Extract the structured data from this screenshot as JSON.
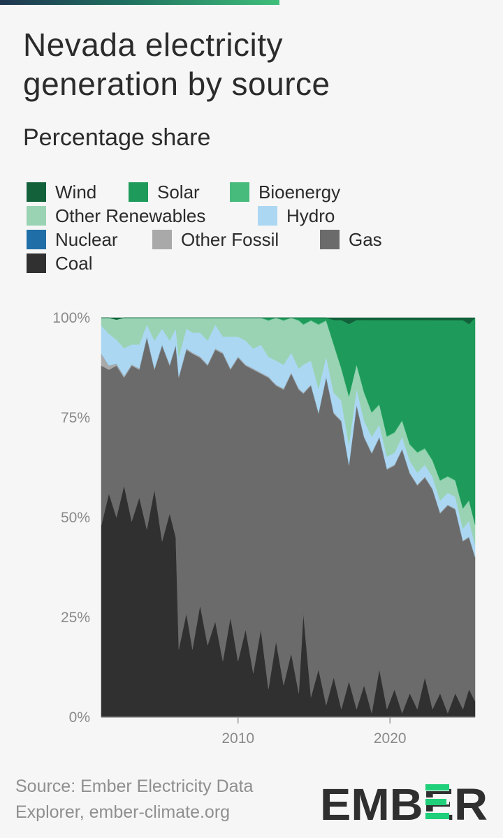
{
  "title_line1": "Nevada electricity",
  "title_line2": "generation by source",
  "subtitle": "Percentage share",
  "source_line1": "Source: Ember Electricity Data",
  "source_line2": "Explorer, ember-climate.org",
  "logo_text": "EMBER",
  "chart_data": {
    "type": "area",
    "stacked": true,
    "unit": "%",
    "title": "Nevada electricity generation by source",
    "subtitle": "Percentage share",
    "x_range": [
      2001.0,
      2025.6
    ],
    "x_ticks": [
      2010,
      2020
    ],
    "x_tick_labels": [
      "2010",
      "2020"
    ],
    "ylim": [
      0,
      100
    ],
    "y_ticks": [
      0,
      25,
      50,
      75,
      100
    ],
    "y_tick_labels": [
      "0%",
      "25%",
      "50%",
      "75%",
      "100%"
    ],
    "legend_position": "top",
    "series_order_bottom_to_top": [
      "Coal",
      "Gas",
      "Other Fossil",
      "Nuclear",
      "Hydro",
      "Other Renewables",
      "Bioenergy",
      "Solar",
      "Wind"
    ],
    "legend": [
      {
        "name": "Wind",
        "color": "#12613b"
      },
      {
        "name": "Solar",
        "color": "#1e9a5a"
      },
      {
        "name": "Bioenergy",
        "color": "#46bb7c"
      },
      {
        "name": "Other Renewables",
        "color": "#99d3b3"
      },
      {
        "name": "Hydro",
        "color": "#acd7f2"
      },
      {
        "name": "Nuclear",
        "color": "#1f6ea8"
      },
      {
        "name": "Other Fossil",
        "color": "#a9a9a9"
      },
      {
        "name": "Gas",
        "color": "#6b6b6b"
      },
      {
        "name": "Coal",
        "color": "#303030"
      }
    ],
    "series": [
      {
        "name": "Coal",
        "points": [
          [
            2001.0,
            48
          ],
          [
            2001.5,
            56
          ],
          [
            2002.0,
            50
          ],
          [
            2002.5,
            58
          ],
          [
            2003.0,
            49
          ],
          [
            2003.5,
            55
          ],
          [
            2004.0,
            47
          ],
          [
            2004.5,
            57
          ],
          [
            2005.0,
            44
          ],
          [
            2005.5,
            51
          ],
          [
            2005.9,
            45
          ],
          [
            2006.1,
            17
          ],
          [
            2006.6,
            26
          ],
          [
            2007.0,
            17
          ],
          [
            2007.5,
            28
          ],
          [
            2008.0,
            18
          ],
          [
            2008.5,
            24
          ],
          [
            2009.0,
            14
          ],
          [
            2009.5,
            25
          ],
          [
            2010.0,
            14
          ],
          [
            2010.5,
            22
          ],
          [
            2011.0,
            11
          ],
          [
            2011.5,
            22
          ],
          [
            2012.0,
            7
          ],
          [
            2012.5,
            19
          ],
          [
            2013.0,
            8
          ],
          [
            2013.5,
            16
          ],
          [
            2014.0,
            6
          ],
          [
            2014.3,
            26
          ],
          [
            2014.8,
            5
          ],
          [
            2015.3,
            12
          ],
          [
            2015.8,
            3
          ],
          [
            2016.3,
            10
          ],
          [
            2016.8,
            2
          ],
          [
            2017.3,
            9
          ],
          [
            2017.8,
            2
          ],
          [
            2018.3,
            8
          ],
          [
            2018.8,
            1
          ],
          [
            2019.3,
            12
          ],
          [
            2019.8,
            2
          ],
          [
            2020.3,
            7
          ],
          [
            2020.8,
            1
          ],
          [
            2021.3,
            6
          ],
          [
            2021.8,
            2
          ],
          [
            2022.3,
            10
          ],
          [
            2022.8,
            2
          ],
          [
            2023.3,
            6
          ],
          [
            2023.8,
            1
          ],
          [
            2024.3,
            6
          ],
          [
            2024.8,
            2
          ],
          [
            2025.2,
            7
          ],
          [
            2025.6,
            4
          ]
        ]
      },
      {
        "name": "Gas",
        "points": [
          [
            2001.0,
            40
          ],
          [
            2001.5,
            31
          ],
          [
            2002.0,
            38
          ],
          [
            2002.5,
            27
          ],
          [
            2003.0,
            39
          ],
          [
            2003.5,
            32
          ],
          [
            2004.0,
            48
          ],
          [
            2004.5,
            30
          ],
          [
            2005.0,
            49
          ],
          [
            2005.5,
            37
          ],
          [
            2005.9,
            48
          ],
          [
            2006.1,
            68
          ],
          [
            2006.6,
            66
          ],
          [
            2007.0,
            74
          ],
          [
            2007.5,
            62
          ],
          [
            2008.0,
            70
          ],
          [
            2008.5,
            68
          ],
          [
            2009.0,
            77
          ],
          [
            2009.5,
            62
          ],
          [
            2010.0,
            76
          ],
          [
            2010.5,
            66
          ],
          [
            2011.0,
            76
          ],
          [
            2011.5,
            64
          ],
          [
            2012.0,
            78
          ],
          [
            2012.5,
            64
          ],
          [
            2013.0,
            74
          ],
          [
            2013.5,
            70
          ],
          [
            2014.0,
            76
          ],
          [
            2014.3,
            55
          ],
          [
            2014.8,
            78
          ],
          [
            2015.3,
            64
          ],
          [
            2015.8,
            82
          ],
          [
            2016.3,
            66
          ],
          [
            2016.8,
            72
          ],
          [
            2017.3,
            54
          ],
          [
            2017.8,
            76
          ],
          [
            2018.3,
            62
          ],
          [
            2018.8,
            65
          ],
          [
            2019.3,
            58
          ],
          [
            2019.8,
            60
          ],
          [
            2020.3,
            56
          ],
          [
            2020.8,
            66
          ],
          [
            2021.3,
            55
          ],
          [
            2021.8,
            56
          ],
          [
            2022.3,
            50
          ],
          [
            2022.8,
            55
          ],
          [
            2023.3,
            45
          ],
          [
            2023.8,
            52
          ],
          [
            2024.3,
            46
          ],
          [
            2024.8,
            42
          ],
          [
            2025.2,
            38
          ],
          [
            2025.6,
            36
          ]
        ]
      },
      {
        "name": "Other Fossil",
        "points": [
          [
            2001.0,
            3
          ],
          [
            2001.5,
            1
          ],
          [
            2002.0,
            0.5
          ],
          [
            2003.0,
            0.3
          ],
          [
            2025.6,
            0.2
          ]
        ]
      },
      {
        "name": "Nuclear",
        "points": [
          [
            2001.0,
            0
          ],
          [
            2025.6,
            0
          ]
        ]
      },
      {
        "name": "Hydro",
        "points": [
          [
            2001.0,
            7
          ],
          [
            2001.5,
            8
          ],
          [
            2002.0,
            6
          ],
          [
            2002.5,
            7
          ],
          [
            2003.0,
            5
          ],
          [
            2003.5,
            6
          ],
          [
            2004.0,
            3
          ],
          [
            2004.5,
            7
          ],
          [
            2005.0,
            4
          ],
          [
            2005.5,
            6
          ],
          [
            2005.9,
            4
          ],
          [
            2006.1,
            5
          ],
          [
            2006.6,
            5
          ],
          [
            2007.0,
            5
          ],
          [
            2007.5,
            6
          ],
          [
            2008.0,
            6
          ],
          [
            2008.5,
            6
          ],
          [
            2009.0,
            4
          ],
          [
            2009.5,
            8
          ],
          [
            2010.0,
            5
          ],
          [
            2010.5,
            6
          ],
          [
            2011.0,
            5
          ],
          [
            2011.5,
            7
          ],
          [
            2012.0,
            5
          ],
          [
            2012.5,
            6
          ],
          [
            2013.0,
            6
          ],
          [
            2013.5,
            5
          ],
          [
            2014.0,
            5
          ],
          [
            2014.3,
            7
          ],
          [
            2014.8,
            6
          ],
          [
            2015.3,
            6
          ],
          [
            2015.8,
            5
          ],
          [
            2016.3,
            5
          ],
          [
            2016.8,
            5
          ],
          [
            2017.3,
            5
          ],
          [
            2017.8,
            4
          ],
          [
            2018.3,
            4
          ],
          [
            2018.8,
            4
          ],
          [
            2019.3,
            3
          ],
          [
            2019.8,
            3
          ],
          [
            2020.3,
            3
          ],
          [
            2020.8,
            3
          ],
          [
            2021.3,
            3
          ],
          [
            2021.8,
            3
          ],
          [
            2022.3,
            3
          ],
          [
            2022.8,
            3
          ],
          [
            2023.3,
            3
          ],
          [
            2023.8,
            3
          ],
          [
            2024.3,
            3
          ],
          [
            2024.8,
            3
          ],
          [
            2025.2,
            4
          ],
          [
            2025.6,
            3
          ]
        ]
      },
      {
        "name": "Other Renewables",
        "points": [
          [
            2001.0,
            2
          ],
          [
            2001.5,
            4
          ],
          [
            2002.0,
            5
          ],
          [
            2002.5,
            8
          ],
          [
            2003.0,
            7
          ],
          [
            2003.5,
            7
          ],
          [
            2004.0,
            2
          ],
          [
            2004.5,
            6
          ],
          [
            2005.0,
            3
          ],
          [
            2005.5,
            6
          ],
          [
            2005.9,
            3
          ],
          [
            2006.1,
            10
          ],
          [
            2006.6,
            3
          ],
          [
            2007.0,
            4
          ],
          [
            2007.5,
            4
          ],
          [
            2008.0,
            6
          ],
          [
            2008.5,
            2
          ],
          [
            2009.0,
            5
          ],
          [
            2009.5,
            5
          ],
          [
            2010.0,
            5
          ],
          [
            2010.5,
            6
          ],
          [
            2011.0,
            8
          ],
          [
            2011.5,
            7
          ],
          [
            2012.0,
            9
          ],
          [
            2012.5,
            11
          ],
          [
            2013.0,
            11
          ],
          [
            2013.5,
            9
          ],
          [
            2014.0,
            12
          ],
          [
            2014.3,
            10
          ],
          [
            2014.8,
            10
          ],
          [
            2015.3,
            16
          ],
          [
            2015.8,
            9
          ],
          [
            2016.3,
            12
          ],
          [
            2016.8,
            8
          ],
          [
            2017.3,
            12
          ],
          [
            2017.8,
            6
          ],
          [
            2018.3,
            7
          ],
          [
            2018.8,
            6
          ],
          [
            2019.3,
            5
          ],
          [
            2019.8,
            5
          ],
          [
            2020.3,
            5
          ],
          [
            2020.8,
            4
          ],
          [
            2021.3,
            4
          ],
          [
            2021.8,
            5
          ],
          [
            2022.3,
            4
          ],
          [
            2022.8,
            4
          ],
          [
            2023.3,
            5
          ],
          [
            2023.8,
            4
          ],
          [
            2024.3,
            4
          ],
          [
            2024.8,
            5
          ],
          [
            2025.2,
            5
          ],
          [
            2025.6,
            5
          ]
        ]
      },
      {
        "name": "Bioenergy",
        "points": [
          [
            2001.0,
            0
          ],
          [
            2012.0,
            0.2
          ],
          [
            2025.6,
            0.2
          ]
        ]
      },
      {
        "name": "Solar",
        "points": [
          [
            2001.0,
            0
          ],
          [
            2008.0,
            0.3
          ],
          [
            2010.0,
            0.5
          ],
          [
            2011.0,
            1
          ],
          [
            2012.0,
            1
          ],
          [
            2013.0,
            1.5
          ],
          [
            2014.0,
            2
          ],
          [
            2014.3,
            2
          ],
          [
            2014.8,
            2
          ],
          [
            2015.3,
            4
          ],
          [
            2015.8,
            3
          ],
          [
            2016.3,
            6
          ],
          [
            2016.8,
            12
          ],
          [
            2017.3,
            18
          ],
          [
            2017.8,
            11
          ],
          [
            2018.3,
            18
          ],
          [
            2018.8,
            23
          ],
          [
            2019.3,
            21
          ],
          [
            2019.8,
            29
          ],
          [
            2020.3,
            28
          ],
          [
            2020.8,
            25
          ],
          [
            2021.3,
            31
          ],
          [
            2021.8,
            33
          ],
          [
            2022.3,
            32
          ],
          [
            2022.8,
            35
          ],
          [
            2023.3,
            40
          ],
          [
            2023.8,
            39
          ],
          [
            2024.3,
            40
          ],
          [
            2024.8,
            47
          ],
          [
            2025.2,
            44
          ],
          [
            2025.6,
            52
          ]
        ]
      },
      {
        "name": "Wind",
        "points": [
          [
            2001.0,
            0
          ],
          [
            2012.0,
            0
          ],
          [
            2012.5,
            0.6
          ],
          [
            2013.0,
            1
          ],
          [
            2014.0,
            1
          ],
          [
            2015.3,
            1.2
          ],
          [
            2016.3,
            1
          ],
          [
            2017.3,
            1.2
          ],
          [
            2018.3,
            1
          ],
          [
            2019.3,
            1
          ],
          [
            2020.3,
            1
          ],
          [
            2021.3,
            1
          ],
          [
            2022.3,
            1
          ],
          [
            2023.3,
            1
          ],
          [
            2024.3,
            1
          ],
          [
            2025.6,
            1
          ]
        ]
      }
    ]
  }
}
